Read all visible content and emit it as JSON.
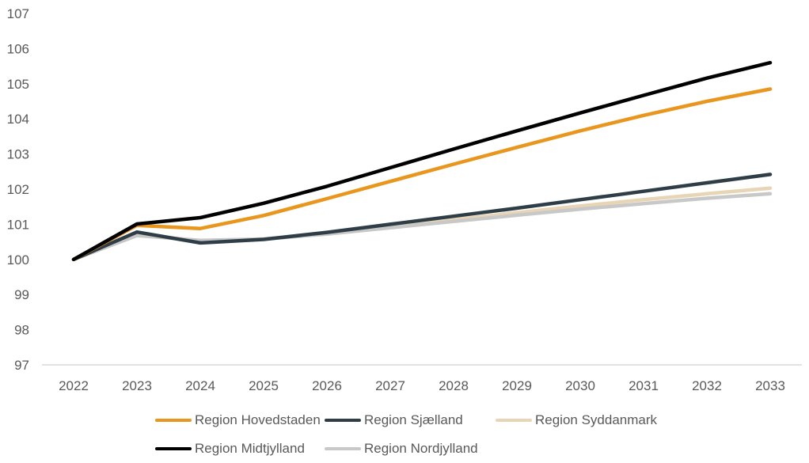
{
  "chart_data": {
    "type": "line",
    "title": "",
    "xlabel": "",
    "ylabel": "",
    "x": [
      "2022",
      "2023",
      "2024",
      "2025",
      "2026",
      "2027",
      "2028",
      "2029",
      "2030",
      "2031",
      "2032",
      "2033"
    ],
    "ylim": [
      97,
      107
    ],
    "yticks": [
      97,
      98,
      99,
      100,
      101,
      102,
      103,
      104,
      105,
      106,
      107
    ],
    "grid": false,
    "legend_position": "bottom",
    "series": [
      {
        "name": "Region Hovedstaden",
        "color": "#E8961E",
        "values": [
          100.0,
          100.97,
          100.88,
          101.25,
          101.73,
          102.22,
          102.71,
          103.19,
          103.66,
          104.1,
          104.5,
          104.85
        ]
      },
      {
        "name": "Region Sjælland",
        "color": "#2F3E46",
        "values": [
          100.0,
          100.78,
          100.47,
          100.57,
          100.77,
          101.0,
          101.23,
          101.46,
          101.7,
          101.94,
          102.18,
          102.42
        ]
      },
      {
        "name": "Region Syddanmark",
        "color": "#E8D5B5",
        "values": [
          100.0,
          100.72,
          100.52,
          100.58,
          100.74,
          100.94,
          101.13,
          101.33,
          101.52,
          101.7,
          101.87,
          102.03
        ]
      },
      {
        "name": "Region Midtjylland",
        "color": "#000000",
        "values": [
          100.0,
          101.01,
          101.19,
          101.6,
          102.08,
          102.61,
          103.14,
          103.66,
          104.17,
          104.67,
          105.16,
          105.6
        ]
      },
      {
        "name": "Region Nordjylland",
        "color": "#C8C8C8",
        "values": [
          100.0,
          100.68,
          100.54,
          100.58,
          100.72,
          100.9,
          101.08,
          101.26,
          101.43,
          101.59,
          101.74,
          101.87
        ]
      }
    ]
  }
}
